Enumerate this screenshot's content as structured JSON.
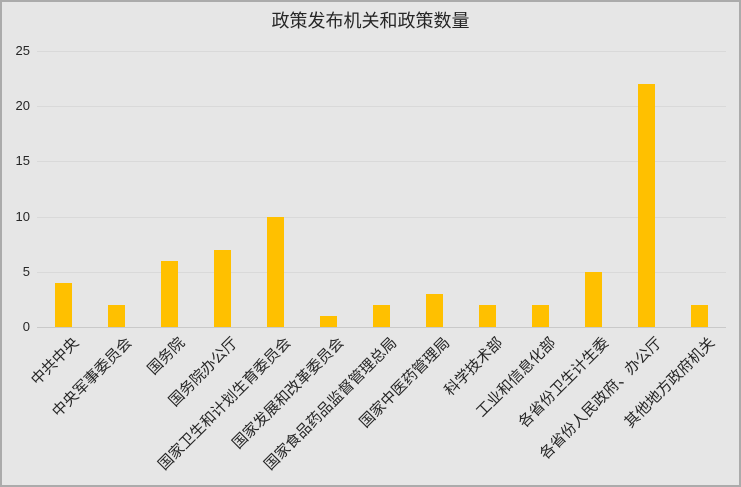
{
  "chart_data": {
    "type": "bar",
    "title": "政策发布机关和政策数量",
    "categories": [
      "中共中央",
      "中央军事委员会",
      "国务院",
      "国务院办公厅",
      "国家卫生和计划生育委员会",
      "国家发展和改革委员会",
      "国家食品药品监督管理总局",
      "国家中医药管理局",
      "科学技术部",
      "工业和信息化部",
      "各省份卫生计生委",
      "各省份人民政府、办公厅",
      "其他地方政府机关"
    ],
    "values": [
      4,
      2,
      6,
      7,
      10,
      1,
      2,
      3,
      2,
      2,
      5,
      22,
      2
    ],
    "xlabel": "",
    "ylabel": "",
    "ylim": [
      0,
      25
    ],
    "yticks": [
      0,
      5,
      10,
      15,
      20,
      25
    ],
    "grid": "horizontal",
    "legend": "none",
    "colors": {
      "bar": "#FFC000",
      "background": "#E6E6E6",
      "gridline": "#D9D9D9",
      "axis_line": "#C9C9C9",
      "frame_border": "#ABABAB",
      "text": "#262626"
    }
  }
}
